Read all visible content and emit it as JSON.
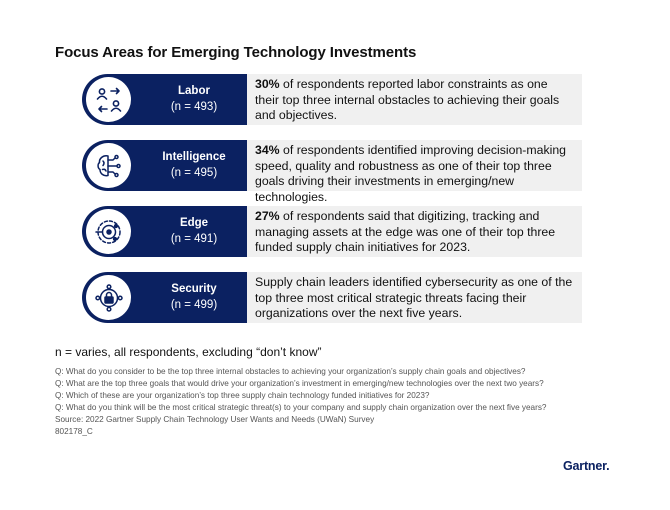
{
  "title": "Focus Areas for Emerging Technology Investments",
  "rows": [
    {
      "name": "Labor",
      "n": "(n = 493)",
      "icon": "people-exchange-icon",
      "highlight": "30%",
      "text": " of respondents reported labor constraints as one their top three internal obstacles to achieving their goals and objectives."
    },
    {
      "name": "Intelligence",
      "n": "(n = 495)",
      "icon": "brain-circuit-icon",
      "highlight": "34%",
      "text": " of respondents identified improving decision-making speed, quality and robustness as one of their top three goals driving their investments in emerging/new technologies."
    },
    {
      "name": "Edge",
      "n": "(n = 491)",
      "icon": "edge-network-icon",
      "highlight": "27%",
      "text": " of respondents said that digitizing, tracking and managing assets at the edge was one of their top three funded supply chain initiatives for 2023."
    },
    {
      "name": "Security",
      "n": "(n = 499)",
      "icon": "lock-network-icon",
      "highlight": "",
      "text": "Supply chain leaders identified cybersecurity as one of the top three most critical strategic threats facing their organizations over the next five years."
    }
  ],
  "note": "n = varies, all respondents, excluding “don’t know”",
  "footnotes": [
    "Q: What do you consider to be the top three internal obstacles to achieving your organization’s supply chain goals and objectives?",
    "Q: What are the top three goals that would drive your organization’s investment in emerging/new technologies over the next two years?",
    "Q: Which of these are your organization’s top three supply chain technology funded initiatives for 2023?",
    "Q: What do you think will be the most critical strategic threat(s) to your company and supply chain organization over the next five years?",
    "Source: 2022 Gartner Supply Chain Technology User Wants and Needs (UWaN) Survey",
    "802178_C"
  ],
  "logo": "Gartner.",
  "colors": {
    "navy": "#0b2161",
    "panel_gray": "#f0f0f0"
  }
}
